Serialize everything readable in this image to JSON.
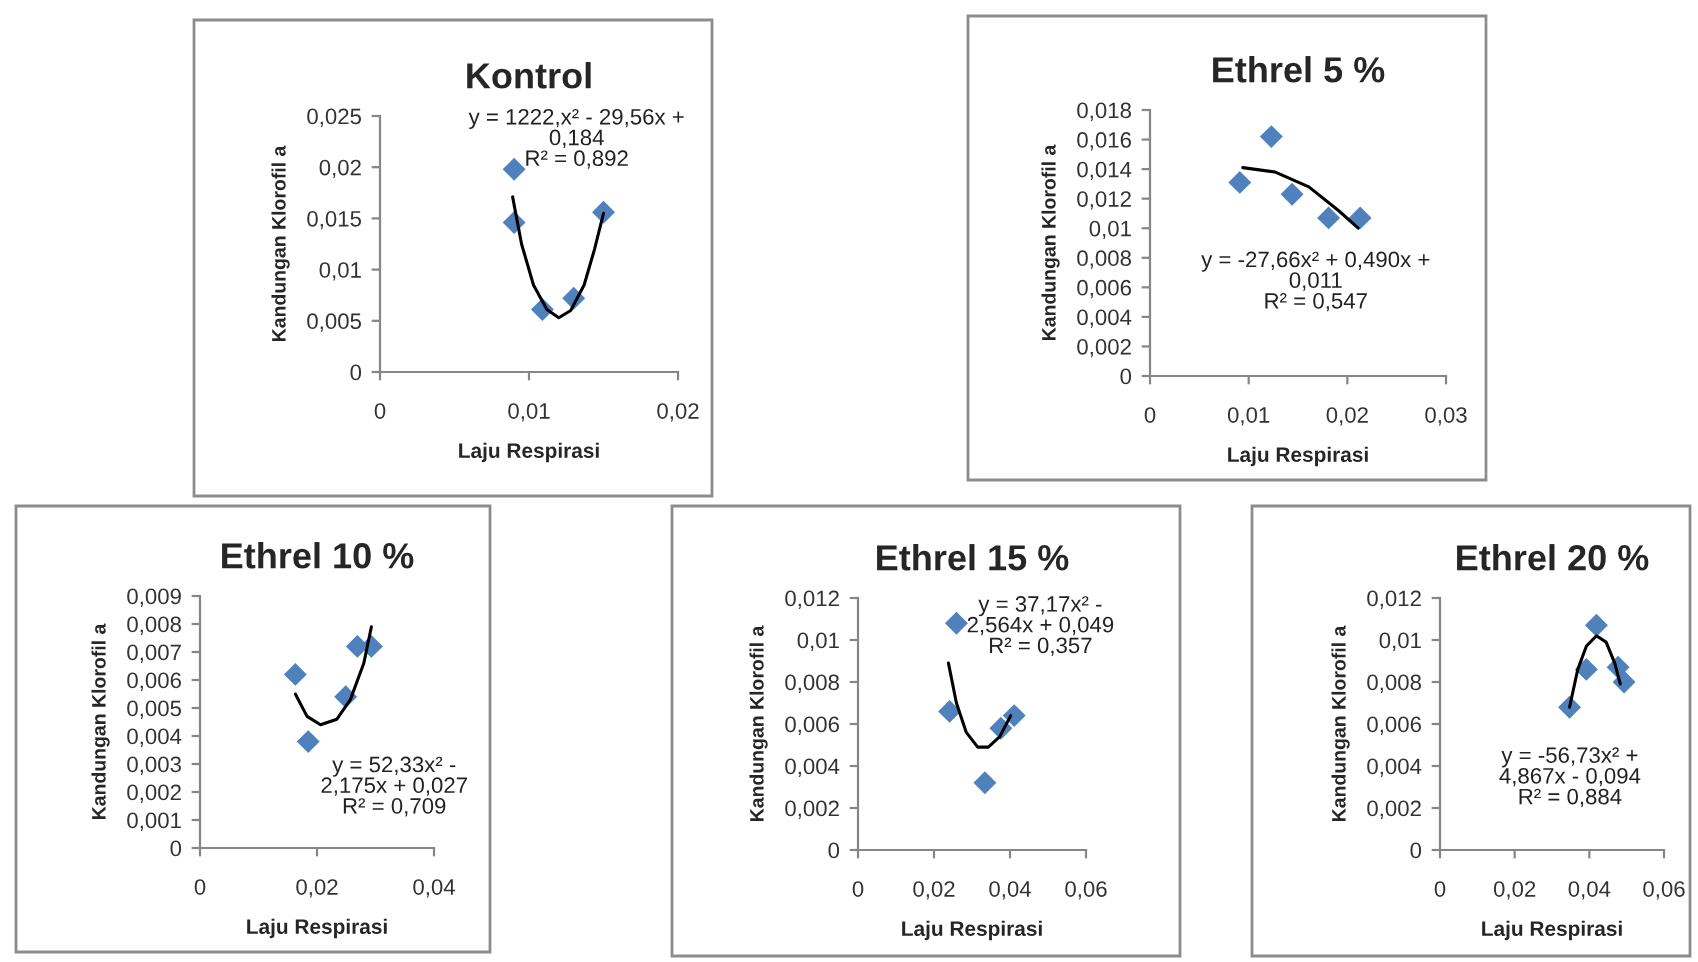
{
  "chart_data": [
    {
      "type": "scatter",
      "title": "Kontrol",
      "xlabel": "Laju Respirasi",
      "ylabel": "Kandungan Klorofil a",
      "xlim": [
        0,
        0.02
      ],
      "ylim": [
        0,
        0.025
      ],
      "xticks": [
        0,
        {
          "value": 0.01,
          "label": "0,01"
        },
        {
          "value": 0.02,
          "label": "0,02"
        }
      ],
      "yticks": [
        0,
        {
          "value": 0.005,
          "label": "0,005"
        },
        {
          "value": 0.01,
          "label": "0,01"
        },
        {
          "value": 0.015,
          "label": "0,015"
        },
        {
          "value": 0.02,
          "label": "0,02"
        },
        {
          "value": 0.025,
          "label": "0,025"
        }
      ],
      "grid": false,
      "annotations": [
        "y = 1222,x² - 29,56x +\n0,184\nR² = 0,892"
      ],
      "series": [
        {
          "type": "scatter",
          "marker": "diamond",
          "color": "#4f81bd",
          "x": [
            0.009,
            0.009,
            0.0109,
            0.013,
            0.015
          ],
          "values": [
            0.0198,
            0.0146,
            0.0061,
            0.0072,
            0.0156
          ]
        },
        {
          "type": "line",
          "marker": "none",
          "color": "#000000",
          "x": [
            0.0089,
            0.0095,
            0.0103,
            0.0112,
            0.012,
            0.0128,
            0.0137,
            0.0144,
            0.015
          ],
          "values": [
            0.0171,
            0.0125,
            0.0085,
            0.0061,
            0.0053,
            0.006,
            0.0085,
            0.012,
            0.0155
          ]
        }
      ]
    },
    {
      "type": "scatter",
      "title": "Ethrel 5 %",
      "xlabel": "Laju Respirasi",
      "ylabel": "Kandungan Klorofil a",
      "xlim": [
        0,
        0.03
      ],
      "ylim": [
        0,
        0.018
      ],
      "xticks": [
        0,
        {
          "value": 0.01,
          "label": "0,01"
        },
        {
          "value": 0.02,
          "label": "0,02"
        },
        {
          "value": 0.03,
          "label": "0,03"
        }
      ],
      "yticks": [
        0,
        {
          "value": 0.002,
          "label": "0,002"
        },
        {
          "value": 0.004,
          "label": "0,004"
        },
        {
          "value": 0.006,
          "label": "0,006"
        },
        {
          "value": 0.008,
          "label": "0,008"
        },
        {
          "value": 0.01,
          "label": "0,01"
        },
        {
          "value": 0.012,
          "label": "0,012"
        },
        {
          "value": 0.014,
          "label": "0,014"
        },
        {
          "value": 0.016,
          "label": "0,016"
        },
        {
          "value": 0.018,
          "label": "0,018"
        }
      ],
      "grid": false,
      "annotations": [
        "y = -27,66x² + 0,490x +\n0,011\nR² = 0,547"
      ],
      "series": [
        {
          "type": "scatter",
          "marker": "diamond",
          "color": "#4f81bd",
          "x": [
            0.0091,
            0.0123,
            0.0144,
            0.0181,
            0.0213
          ],
          "values": [
            0.0131,
            0.0162,
            0.0123,
            0.0107,
            0.0107
          ]
        },
        {
          "type": "line",
          "marker": "none",
          "color": "#000000",
          "x": [
            0.0094,
            0.0127,
            0.0161,
            0.0191,
            0.0211
          ],
          "values": [
            0.0141,
            0.0138,
            0.0128,
            0.0112,
            0.01
          ]
        }
      ]
    },
    {
      "type": "scatter",
      "title": "Ethrel 10 %",
      "xlabel": "Laju Respirasi",
      "ylabel": "Kandungan Klorofil a",
      "xlim": [
        0,
        0.04
      ],
      "ylim": [
        0,
        0.009
      ],
      "xticks": [
        0,
        {
          "value": 0.02,
          "label": "0,02"
        },
        {
          "value": 0.04,
          "label": "0,04"
        }
      ],
      "yticks": [
        0,
        {
          "value": 0.001,
          "label": "0,001"
        },
        {
          "value": 0.002,
          "label": "0,002"
        },
        {
          "value": 0.003,
          "label": "0,003"
        },
        {
          "value": 0.004,
          "label": "0,004"
        },
        {
          "value": 0.005,
          "label": "0,005"
        },
        {
          "value": 0.006,
          "label": "0,006"
        },
        {
          "value": 0.007,
          "label": "0,007"
        },
        {
          "value": 0.008,
          "label": "0,008"
        },
        {
          "value": 0.009,
          "label": "0,009"
        }
      ],
      "grid": false,
      "annotations": [
        "y = 52,33x² -\n2,175x + 0,027\nR² = 0,709"
      ],
      "series": [
        {
          "type": "scatter",
          "marker": "diamond",
          "color": "#4f81bd",
          "x": [
            0.0163,
            0.0185,
            0.0249,
            0.0269,
            0.0293
          ],
          "values": [
            0.0062,
            0.0038,
            0.0054,
            0.0072,
            0.0072
          ]
        },
        {
          "type": "line",
          "marker": "none",
          "color": "#000000",
          "x": [
            0.0163,
            0.0183,
            0.0206,
            0.0234,
            0.0257,
            0.028,
            0.0293
          ],
          "values": [
            0.0055,
            0.0047,
            0.0044,
            0.0046,
            0.0053,
            0.0066,
            0.0079
          ]
        }
      ]
    },
    {
      "type": "scatter",
      "title": "Ethrel 15 %",
      "xlabel": "Laju Respirasi",
      "ylabel": "Kandungan Klorofil a",
      "xlim": [
        0,
        0.06
      ],
      "ylim": [
        0,
        0.012
      ],
      "xticks": [
        0,
        {
          "value": 0.02,
          "label": "0,02"
        },
        {
          "value": 0.04,
          "label": "0,04"
        },
        {
          "value": 0.06,
          "label": "0,06"
        }
      ],
      "yticks": [
        0,
        {
          "value": 0.002,
          "label": "0,002"
        },
        {
          "value": 0.004,
          "label": "0,004"
        },
        {
          "value": 0.006,
          "label": "0,006"
        },
        {
          "value": 0.008,
          "label": "0,008"
        },
        {
          "value": 0.01,
          "label": "0,01"
        },
        {
          "value": 0.012,
          "label": "0,012"
        }
      ],
      "grid": false,
      "annotations": [
        "y = 37,17x² -\n2,564x + 0,049\nR² = 0,357"
      ],
      "series": [
        {
          "type": "scatter",
          "marker": "diamond",
          "color": "#4f81bd",
          "x": [
            0.0241,
            0.0259,
            0.0334,
            0.0376,
            0.0411
          ],
          "values": [
            0.0066,
            0.0108,
            0.0032,
            0.0058,
            0.0064
          ]
        },
        {
          "type": "line",
          "marker": "none",
          "color": "#000000",
          "x": [
            0.0238,
            0.0259,
            0.0285,
            0.0315,
            0.0343,
            0.0373,
            0.0402
          ],
          "values": [
            0.0089,
            0.007,
            0.0056,
            0.0049,
            0.0049,
            0.0054,
            0.0064
          ]
        }
      ]
    },
    {
      "type": "scatter",
      "title": "Ethrel 20 %",
      "xlabel": "Laju Respirasi",
      "ylabel": "Kandungan Klorofil a",
      "xlim": [
        0,
        0.06
      ],
      "ylim": [
        0,
        0.012
      ],
      "xticks": [
        0,
        {
          "value": 0.02,
          "label": "0,02"
        },
        {
          "value": 0.04,
          "label": "0,04"
        },
        {
          "value": 0.06,
          "label": "0,06"
        }
      ],
      "yticks": [
        0,
        {
          "value": 0.002,
          "label": "0,002"
        },
        {
          "value": 0.004,
          "label": "0,004"
        },
        {
          "value": 0.006,
          "label": "0,006"
        },
        {
          "value": 0.008,
          "label": "0,008"
        },
        {
          "value": 0.01,
          "label": "0,01"
        },
        {
          "value": 0.012,
          "label": "0,012"
        }
      ],
      "grid": false,
      "annotations": [
        "y = -56,73x² +\n4,867x - 0,094\nR² = 0,884"
      ],
      "series": [
        {
          "type": "scatter",
          "marker": "diamond",
          "color": "#4f81bd",
          "x": [
            0.0347,
            0.0392,
            0.0419,
            0.0477,
            0.0493
          ],
          "values": [
            0.0068,
            0.0086,
            0.0107,
            0.0087,
            0.008
          ]
        },
        {
          "type": "line",
          "marker": "none",
          "color": "#000000",
          "x": [
            0.0347,
            0.0369,
            0.0392,
            0.0419,
            0.0445,
            0.0468,
            0.0483
          ],
          "values": [
            0.0068,
            0.0086,
            0.0097,
            0.0102,
            0.0099,
            0.0089,
            0.0079
          ]
        }
      ]
    }
  ]
}
